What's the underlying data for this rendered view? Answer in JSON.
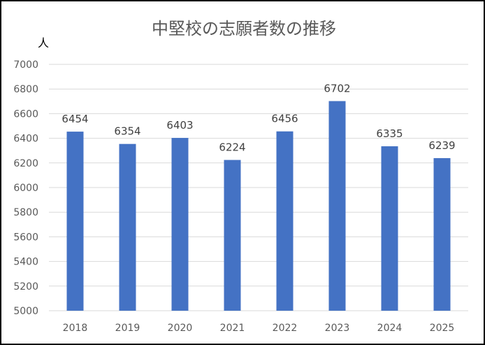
{
  "chart_data": {
    "type": "bar",
    "title": "中堅校の志願者数の推移",
    "ylabel": "人",
    "xlabel": "",
    "categories": [
      "2018",
      "2019",
      "2020",
      "2021",
      "2022",
      "2023",
      "2024",
      "2025"
    ],
    "values": [
      6454,
      6354,
      6403,
      6224,
      6456,
      6702,
      6335,
      6239
    ],
    "ylim": [
      5000,
      7000
    ],
    "yticks": [
      "5000",
      "5200",
      "5400",
      "5600",
      "5800",
      "6000",
      "6200",
      "6400",
      "6600",
      "6800",
      "7000"
    ],
    "grid": true,
    "legend": "none",
    "data_labels": true,
    "bar_color": "#4472C4",
    "grid_color": "#D9D9D9"
  }
}
